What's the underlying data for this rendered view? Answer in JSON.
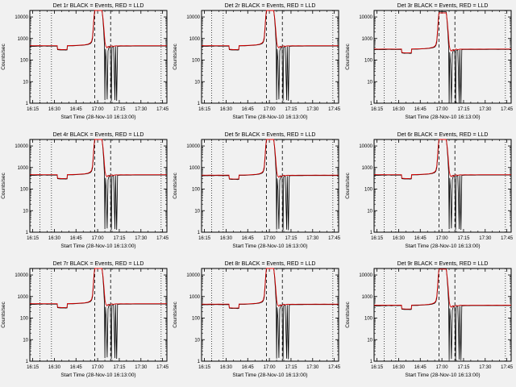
{
  "window": {
    "background": "#f1f1f1",
    "description": "3x3 grid of detector count-rate quicklook plots"
  },
  "chart_data": {
    "type": "line",
    "layout": "3x3-grid",
    "ylog": true,
    "grid": false,
    "ylabel": "Counts/sec",
    "xlabel": "Start Time (28-Nov-10 16:13:00)",
    "x_ticks": [
      "16:15",
      "16:30",
      "16:45",
      "17:00",
      "17:15",
      "17:30",
      "17:45"
    ],
    "x_tick_minutes": [
      2,
      17,
      32,
      47,
      62,
      77,
      92
    ],
    "xlim_minutes": [
      0,
      95
    ],
    "y_tick_labels": [
      "1",
      "10",
      "100",
      "1000",
      "10000"
    ],
    "y_tick_values": [
      1,
      10,
      100,
      1000,
      10000
    ],
    "ylim": [
      1,
      20000
    ],
    "legend": {
      "black": "Events",
      "red": "LLD"
    },
    "vlines": {
      "dotted_minutes": [
        7,
        15,
        91
      ],
      "dashed_minutes": [
        45,
        56
      ]
    },
    "colors": {
      "events": "#000000",
      "lld": "#d40000",
      "axis": "#000000"
    },
    "panels": [
      {
        "title": "Det 1r BLACK = Events, RED = LLD",
        "scale": 1.0
      },
      {
        "title": "Det 2r BLACK = Events, RED = LLD",
        "scale": 1.0
      },
      {
        "title": "Det 3r BLACK = Events, RED = LLD",
        "scale": 0.7
      },
      {
        "title": "Det 4r BLACK = Events, RED = LLD",
        "scale": 1.0
      },
      {
        "title": "Det 5r BLACK = Events, RED = LLD",
        "scale": 0.95
      },
      {
        "title": "Det 6r BLACK = Events, RED = LLD",
        "scale": 1.0
      },
      {
        "title": "Det 7r BLACK = Events, RED = LLD",
        "scale": 1.0
      },
      {
        "title": "Det 8r BLACK = Events, RED = LLD",
        "scale": 0.95
      },
      {
        "title": "Det 9r BLACK = Events, RED = LLD",
        "scale": 0.85
      }
    ],
    "series": [
      {
        "name": "Events",
        "color_key": "events",
        "points": [
          [
            0,
            430
          ],
          [
            2,
            442
          ],
          [
            4,
            435
          ],
          [
            6,
            448
          ],
          [
            8,
            438
          ],
          [
            10,
            452
          ],
          [
            12,
            442
          ],
          [
            14,
            450
          ],
          [
            16,
            444
          ],
          [
            18,
            446
          ],
          [
            19,
            447
          ],
          [
            19.2,
            305
          ],
          [
            21,
            295
          ],
          [
            23,
            300
          ],
          [
            25,
            292
          ],
          [
            25.8,
            296
          ],
          [
            26,
            452
          ],
          [
            28,
            460
          ],
          [
            30,
            456
          ],
          [
            32,
            468
          ],
          [
            34,
            476
          ],
          [
            36,
            486
          ],
          [
            38,
            498
          ],
          [
            40,
            520
          ],
          [
            41,
            545
          ],
          [
            42,
            580
          ],
          [
            42.8,
            680
          ],
          [
            43.4,
            950
          ],
          [
            44,
            2600
          ],
          [
            44.5,
            9500
          ],
          [
            45,
            25000
          ],
          [
            50,
            25000
          ],
          [
            50.6,
            9000
          ],
          [
            51.2,
            2400
          ],
          [
            51.7,
            520
          ],
          [
            52,
            1.4
          ],
          [
            52.4,
            330
          ],
          [
            53,
            95
          ],
          [
            53.6,
            1.5
          ],
          [
            54.2,
            270
          ],
          [
            55,
            430
          ],
          [
            55.8,
            365
          ],
          [
            56.5,
            1.3
          ],
          [
            56.9,
            395
          ],
          [
            58,
            436
          ],
          [
            59,
            1.4
          ],
          [
            59.4,
            428
          ],
          [
            60.2,
            1.3
          ],
          [
            60.8,
            433
          ],
          [
            62,
            441
          ],
          [
            64,
            448
          ],
          [
            66,
            444
          ],
          [
            68,
            450
          ],
          [
            70,
            446
          ],
          [
            72,
            451
          ],
          [
            74,
            447
          ],
          [
            76,
            450
          ],
          [
            78,
            448
          ],
          [
            80,
            451
          ],
          [
            82,
            449
          ],
          [
            84,
            450
          ],
          [
            86,
            447
          ],
          [
            88,
            450
          ],
          [
            90,
            449
          ],
          [
            92,
            450
          ],
          [
            94,
            449
          ],
          [
            95,
            450
          ]
        ]
      },
      {
        "name": "LLD",
        "color_key": "lld",
        "points": [
          [
            0,
            468
          ],
          [
            3,
            463
          ],
          [
            6,
            467
          ],
          [
            9,
            464
          ],
          [
            12,
            466
          ],
          [
            15,
            463
          ],
          [
            18,
            466
          ],
          [
            19,
            466
          ],
          [
            19.2,
            318
          ],
          [
            22,
            308
          ],
          [
            25,
            312
          ],
          [
            25.8,
            316
          ],
          [
            26,
            470
          ],
          [
            29,
            474
          ],
          [
            32,
            480
          ],
          [
            35,
            492
          ],
          [
            38,
            512
          ],
          [
            40,
            542
          ],
          [
            41,
            575
          ],
          [
            42,
            625
          ],
          [
            42.8,
            740
          ],
          [
            43.4,
            1150
          ],
          [
            44,
            3300
          ],
          [
            44.5,
            10500
          ],
          [
            45,
            22000
          ],
          [
            50,
            22000
          ],
          [
            50.8,
            7800
          ],
          [
            51.5,
            2100
          ],
          [
            52.1,
            680
          ],
          [
            52.7,
            430
          ],
          [
            53.5,
            375
          ],
          [
            54.3,
            435
          ],
          [
            55.2,
            392
          ],
          [
            56,
            442
          ],
          [
            57,
            460
          ],
          [
            58,
            428
          ],
          [
            59,
            455
          ],
          [
            60,
            462
          ],
          [
            61,
            458
          ],
          [
            63,
            463
          ],
          [
            65,
            460
          ],
          [
            67,
            464
          ],
          [
            70,
            462
          ],
          [
            73,
            465
          ],
          [
            76,
            463
          ],
          [
            79,
            466
          ],
          [
            82,
            464
          ],
          [
            85,
            466
          ],
          [
            88,
            464
          ],
          [
            91,
            466
          ],
          [
            93,
            465
          ],
          [
            95,
            466
          ]
        ]
      }
    ]
  }
}
